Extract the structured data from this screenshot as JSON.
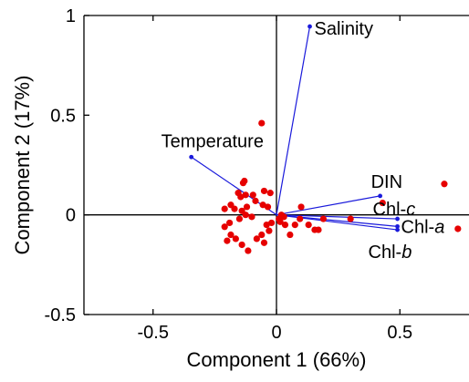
{
  "chart_data": {
    "type": "scatter",
    "subtype": "pca-biplot",
    "title": "",
    "xlabel": "Component 1 (66%)",
    "ylabel": "Component 2 (17%)",
    "xlim": [
      -0.78,
      0.78
    ],
    "ylim": [
      -0.5,
      1.0
    ],
    "x_ticks": [
      {
        "value": -0.5,
        "label": "-0.5"
      },
      {
        "value": 0,
        "label": "0"
      },
      {
        "value": 0.5,
        "label": "0.5"
      }
    ],
    "y_ticks": [
      {
        "value": -0.5,
        "label": "-0.5"
      },
      {
        "value": 0,
        "label": "0"
      },
      {
        "value": 0.5,
        "label": "0.5"
      },
      {
        "value": 1,
        "label": "1"
      }
    ],
    "grid": false,
    "zero_lines": true,
    "colors": {
      "scores": "#e60000",
      "loadings": "#1a1adb",
      "axes": "#000000"
    },
    "loadings": [
      {
        "name": "Salinity",
        "italic_suffix": "",
        "x": 0.135,
        "y": 0.945
      },
      {
        "name": "Temperature",
        "italic_suffix": "",
        "x": -0.345,
        "y": 0.29
      },
      {
        "name": "DIN",
        "italic_suffix": "",
        "x": 0.42,
        "y": 0.095
      },
      {
        "name": "Chl-",
        "italic_suffix": "c",
        "x": 0.49,
        "y": -0.02
      },
      {
        "name": "Chl-",
        "italic_suffix": "a",
        "x": 0.49,
        "y": -0.058
      },
      {
        "name": "Chl-",
        "italic_suffix": "b",
        "x": 0.49,
        "y": -0.075
      }
    ],
    "scores": [
      {
        "x": -0.06,
        "y": 0.46
      },
      {
        "x": -0.13,
        "y": 0.17
      },
      {
        "x": -0.135,
        "y": 0.16
      },
      {
        "x": -0.155,
        "y": 0.11
      },
      {
        "x": -0.125,
        "y": 0.1
      },
      {
        "x": -0.145,
        "y": 0.09
      },
      {
        "x": -0.095,
        "y": 0.1
      },
      {
        "x": -0.085,
        "y": 0.07
      },
      {
        "x": -0.05,
        "y": 0.12
      },
      {
        "x": -0.025,
        "y": 0.11
      },
      {
        "x": -0.055,
        "y": 0.05
      },
      {
        "x": -0.035,
        "y": 0.04
      },
      {
        "x": -0.12,
        "y": 0.04
      },
      {
        "x": -0.14,
        "y": 0.02
      },
      {
        "x": -0.17,
        "y": 0.03
      },
      {
        "x": -0.21,
        "y": 0.03
      },
      {
        "x": -0.185,
        "y": 0.05
      },
      {
        "x": -0.125,
        "y": 0.0
      },
      {
        "x": -0.1,
        "y": -0.01
      },
      {
        "x": -0.15,
        "y": -0.02
      },
      {
        "x": -0.19,
        "y": -0.04
      },
      {
        "x": -0.21,
        "y": -0.06
      },
      {
        "x": -0.2,
        "y": -0.13
      },
      {
        "x": -0.185,
        "y": -0.1
      },
      {
        "x": -0.165,
        "y": -0.12
      },
      {
        "x": -0.14,
        "y": -0.15
      },
      {
        "x": -0.115,
        "y": -0.18
      },
      {
        "x": -0.08,
        "y": -0.12
      },
      {
        "x": -0.05,
        "y": -0.14
      },
      {
        "x": -0.03,
        "y": -0.08
      },
      {
        "x": -0.04,
        "y": -0.05
      },
      {
        "x": -0.06,
        "y": -0.1
      },
      {
        "x": -0.02,
        "y": -0.04
      },
      {
        "x": 0.01,
        "y": -0.02
      },
      {
        "x": 0.02,
        "y": 0.0
      },
      {
        "x": 0.03,
        "y": -0.01
      },
      {
        "x": 0.015,
        "y": -0.035
      },
      {
        "x": 0.035,
        "y": -0.05
      },
      {
        "x": 0.055,
        "y": -0.1
      },
      {
        "x": 0.075,
        "y": -0.05
      },
      {
        "x": 0.095,
        "y": -0.02
      },
      {
        "x": 0.1,
        "y": 0.04
      },
      {
        "x": 0.13,
        "y": -0.05
      },
      {
        "x": 0.155,
        "y": -0.075
      },
      {
        "x": 0.17,
        "y": -0.075
      },
      {
        "x": 0.19,
        "y": -0.02
      },
      {
        "x": 0.3,
        "y": -0.02
      },
      {
        "x": 0.43,
        "y": 0.06
      },
      {
        "x": 0.68,
        "y": 0.155
      },
      {
        "x": 0.735,
        "y": -0.07
      }
    ]
  }
}
